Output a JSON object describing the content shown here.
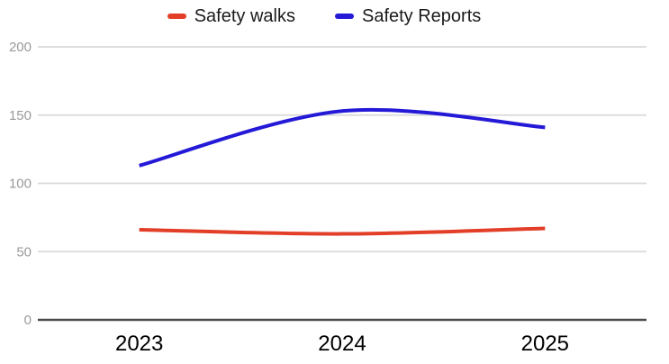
{
  "chart_data": {
    "type": "line",
    "smooth": true,
    "title": "",
    "categories": [
      "2023",
      "2024",
      "2025"
    ],
    "series": [
      {
        "name": "Safety walks",
        "color": "#e23e28",
        "values": [
          66,
          63,
          67
        ]
      },
      {
        "name": "Safety Reports",
        "color": "#2319d7",
        "values": [
          113,
          153,
          141
        ]
      }
    ],
    "ylim": [
      0,
      200
    ],
    "yticks": [
      0,
      50,
      100,
      150,
      200
    ],
    "grid": true,
    "legend_position": "top",
    "colors": {
      "background": "#ffffff",
      "gridline": "#d9d9d9",
      "axis_line": "#4a4a4a",
      "ytick_label": "#999999",
      "xtick_label": "#000000",
      "legend_text": "#1a1a1a"
    }
  }
}
